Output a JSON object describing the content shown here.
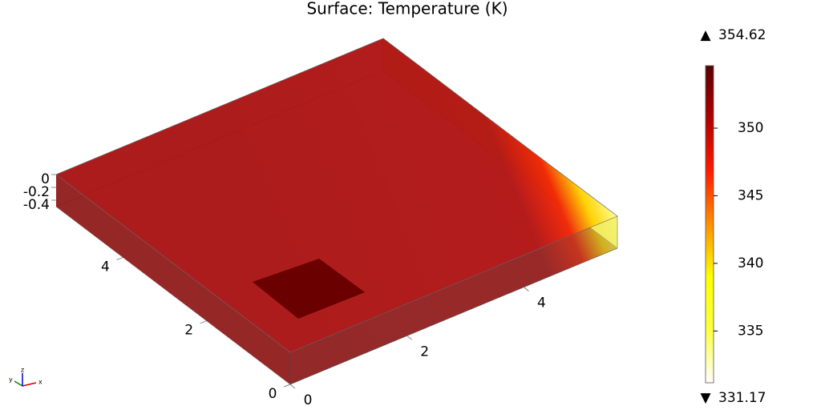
{
  "chart_data": {
    "type": "surface3d",
    "title": "Surface: Temperature (K)",
    "axis_names": [
      "x",
      "y",
      "z"
    ],
    "xlim": [
      0,
      5.6
    ],
    "xticks": [
      0,
      2,
      4
    ],
    "ylim": [
      0,
      5.6
    ],
    "yticks": [
      0,
      2,
      4
    ],
    "zlim": [
      -0.5,
      0
    ],
    "zticks": [
      0,
      -0.2,
      -0.4
    ],
    "colorbar": {
      "min": 331.17,
      "max": 354.62,
      "ticks": [
        335,
        340,
        345,
        350
      ],
      "colormap": [
        "#ffffff",
        "#ffff40",
        "#ffff00",
        "#ff9000",
        "#ff1a00",
        "#b00000",
        "#5a0000"
      ]
    }
  }
}
